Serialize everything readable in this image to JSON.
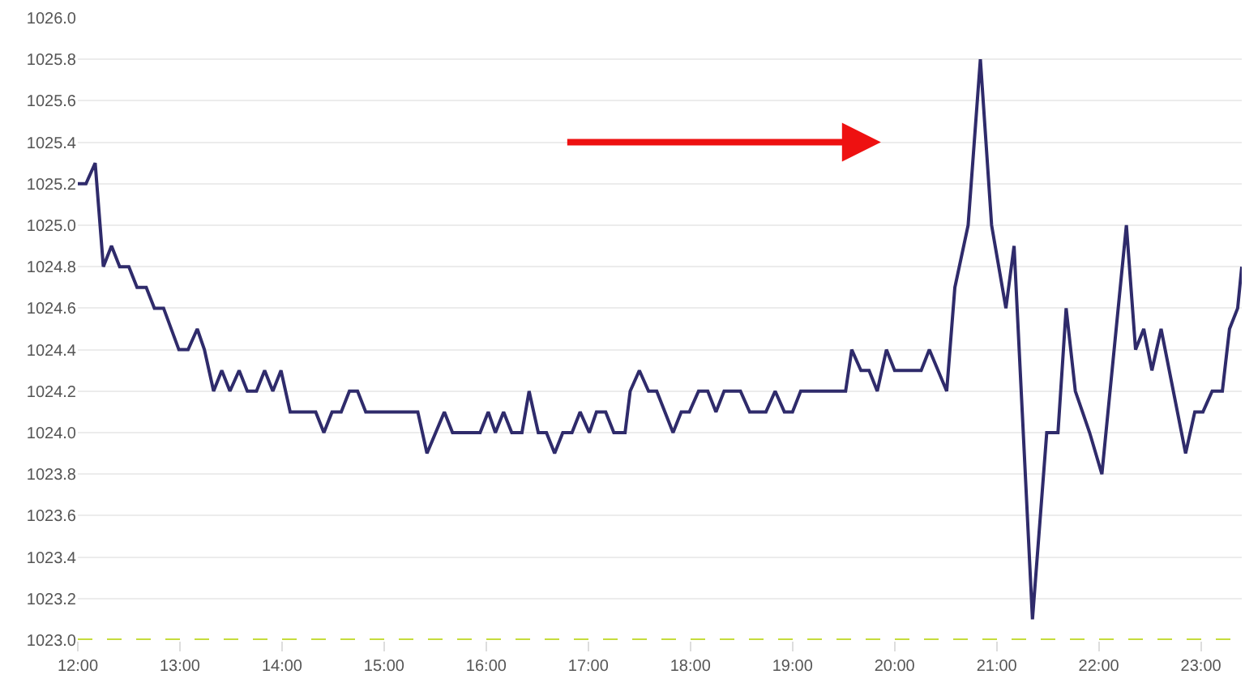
{
  "chart_data": {
    "type": "line",
    "marker": "none",
    "line_style": "solid",
    "grid": "y",
    "xlim": [
      12,
      23.4
    ],
    "ylim": [
      1023.0,
      1026.0
    ],
    "xticks": [
      {
        "value": 12,
        "label": "12:00"
      },
      {
        "value": 13,
        "label": "13:00"
      },
      {
        "value": 14,
        "label": "14:00"
      },
      {
        "value": 15,
        "label": "15:00"
      },
      {
        "value": 16,
        "label": "16:00"
      },
      {
        "value": 17,
        "label": "17:00"
      },
      {
        "value": 18,
        "label": "18:00"
      },
      {
        "value": 19,
        "label": "19:00"
      },
      {
        "value": 20,
        "label": "20:00"
      },
      {
        "value": 21,
        "label": "21:00"
      },
      {
        "value": 22,
        "label": "22:00"
      },
      {
        "value": 23,
        "label": "23:00"
      }
    ],
    "yticks": [
      {
        "value": 1023.0,
        "label": "1023.0"
      },
      {
        "value": 1023.2,
        "label": "1023.2"
      },
      {
        "value": 1023.4,
        "label": "1023.4"
      },
      {
        "value": 1023.6,
        "label": "1023.6"
      },
      {
        "value": 1023.8,
        "label": "1023.8"
      },
      {
        "value": 1024.0,
        "label": "1024.0"
      },
      {
        "value": 1024.2,
        "label": "1024.2"
      },
      {
        "value": 1024.4,
        "label": "1024.4"
      },
      {
        "value": 1024.6,
        "label": "1024.6"
      },
      {
        "value": 1024.8,
        "label": "1024.8"
      },
      {
        "value": 1025.0,
        "label": "1025.0"
      },
      {
        "value": 1025.2,
        "label": "1025.2"
      },
      {
        "value": 1025.4,
        "label": "1025.4"
      },
      {
        "value": 1025.6,
        "label": "1025.6"
      },
      {
        "value": 1025.8,
        "label": "1025.8"
      },
      {
        "value": 1026.0,
        "label": "1026.0"
      }
    ],
    "ref_lines": [
      {
        "axis": "y",
        "value": 1023.0,
        "color": "#c6dc3c",
        "line_style": "dashed"
      }
    ],
    "series": [
      {
        "color": "#2f2b6b",
        "x": [
          12.0,
          12.08,
          12.17,
          12.25,
          12.33,
          12.41,
          12.5,
          12.58,
          12.67,
          12.75,
          12.84,
          12.99,
          13.08,
          13.17,
          13.24,
          13.33,
          13.41,
          13.49,
          13.58,
          13.66,
          13.75,
          13.83,
          13.91,
          13.99,
          14.08,
          14.33,
          14.41,
          14.49,
          14.58,
          14.66,
          14.74,
          14.82,
          15.33,
          15.42,
          15.59,
          15.67,
          15.94,
          16.02,
          16.09,
          16.17,
          16.25,
          16.35,
          16.42,
          16.51,
          16.59,
          16.67,
          16.75,
          16.84,
          16.92,
          17.01,
          17.08,
          17.17,
          17.25,
          17.36,
          17.41,
          17.5,
          17.59,
          17.67,
          17.83,
          17.91,
          17.99,
          18.08,
          18.17,
          18.25,
          18.33,
          18.49,
          18.58,
          18.74,
          18.83,
          18.92,
          19.0,
          19.08,
          19.52,
          19.58,
          19.67,
          19.75,
          19.83,
          19.92,
          20.0,
          20.26,
          20.34,
          20.51,
          20.59,
          20.72,
          20.84,
          20.95,
          21.09,
          21.17,
          21.35,
          21.49,
          21.6,
          21.68,
          21.77,
          21.91,
          22.03,
          22.27,
          22.36,
          22.44,
          22.52,
          22.61,
          22.85,
          22.94,
          23.02,
          23.11,
          23.21,
          23.28,
          23.36,
          23.4
        ],
        "values": [
          1025.2,
          1025.2,
          1025.3,
          1024.8,
          1024.9,
          1024.8,
          1024.8,
          1024.7,
          1024.7,
          1024.6,
          1024.6,
          1024.4,
          1024.4,
          1024.5,
          1024.4,
          1024.2,
          1024.3,
          1024.2,
          1024.3,
          1024.2,
          1024.2,
          1024.3,
          1024.2,
          1024.3,
          1024.1,
          1024.1,
          1024.0,
          1024.1,
          1024.1,
          1024.2,
          1024.2,
          1024.1,
          1024.1,
          1023.9,
          1024.1,
          1024.0,
          1024.0,
          1024.1,
          1024.0,
          1024.1,
          1024.0,
          1024.0,
          1024.2,
          1024.0,
          1024.0,
          1023.9,
          1024.0,
          1024.0,
          1024.1,
          1024.0,
          1024.1,
          1024.1,
          1024.0,
          1024.0,
          1024.2,
          1024.3,
          1024.2,
          1024.2,
          1024.0,
          1024.1,
          1024.1,
          1024.2,
          1024.2,
          1024.1,
          1024.2,
          1024.2,
          1024.1,
          1024.1,
          1024.2,
          1024.1,
          1024.1,
          1024.2,
          1024.2,
          1024.4,
          1024.3,
          1024.3,
          1024.2,
          1024.4,
          1024.3,
          1024.3,
          1024.4,
          1024.2,
          1024.7,
          1025.0,
          1025.8,
          1025.0,
          1024.6,
          1024.9,
          1023.1,
          1024.0,
          1024.0,
          1024.6,
          1024.2,
          1024.0,
          1023.8,
          1025.0,
          1024.4,
          1024.5,
          1024.3,
          1024.5,
          1023.9,
          1024.1,
          1024.1,
          1024.2,
          1024.2,
          1024.5,
          1024.6,
          1024.8
        ]
      }
    ]
  }
}
